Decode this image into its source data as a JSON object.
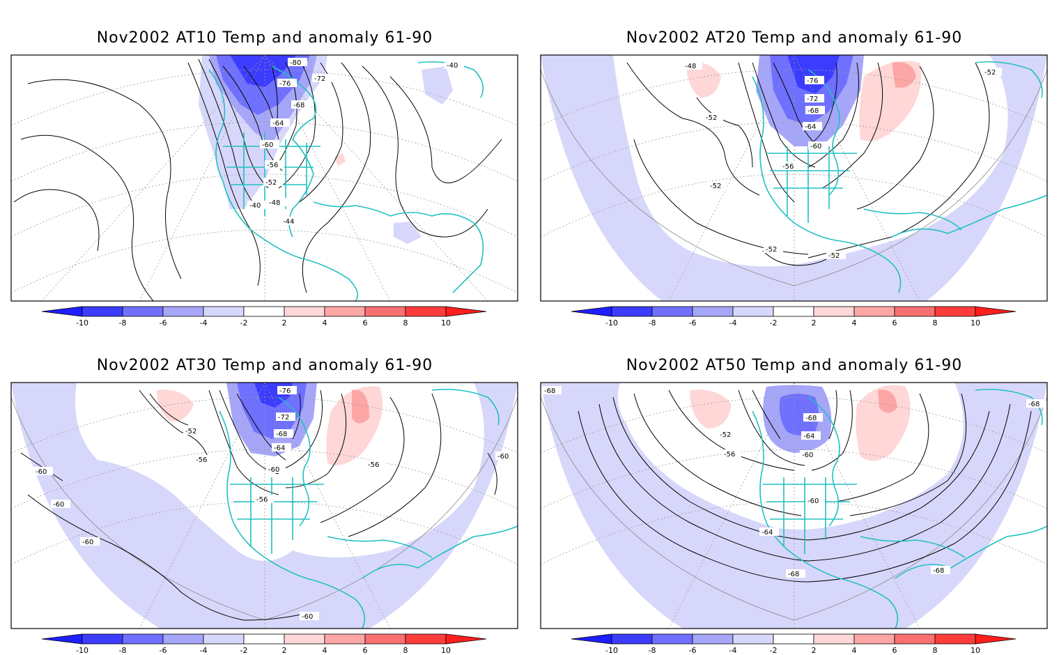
{
  "panels": [
    {
      "title": "Nov2002 AT10 Temp and anomaly 61-90",
      "contour_labels": [
        "-80",
        "-76",
        "-72",
        "-68",
        "-64",
        "-60",
        "-56",
        "-52",
        "-48",
        "-44",
        "-40",
        "-40"
      ]
    },
    {
      "title": "Nov2002 AT20 Temp and anomaly 61-90",
      "contour_labels": [
        "-48",
        "-52",
        "-76",
        "-72",
        "-68",
        "-64",
        "-60",
        "-56",
        "-52",
        "-52",
        "-52",
        "-52"
      ]
    },
    {
      "title": "Nov2002 AT30 Temp and anomaly 61-90",
      "contour_labels": [
        "-76",
        "-72",
        "-68",
        "-64",
        "-60",
        "-52",
        "-56",
        "-56",
        "-56",
        "-60",
        "-60",
        "-60",
        "-60",
        "-60"
      ]
    },
    {
      "title": "Nov2002 AT50 Temp and anomaly 61-90",
      "contour_labels": [
        "-68",
        "-64",
        "-60",
        "-52",
        "-56",
        "-60",
        "-64",
        "-68",
        "-68",
        "-68",
        "-68"
      ]
    }
  ],
  "colorbar": {
    "ticks": [
      "-10",
      "-8",
      "-6",
      "-4",
      "-2",
      "2",
      "4",
      "6",
      "8",
      "10"
    ],
    "colors": [
      "#1e1eff",
      "#3c3cff",
      "#7070ff",
      "#a6a6f8",
      "#d7d7fb",
      "#ffffff",
      "#ffd7d7",
      "#fca6a6",
      "#f87070",
      "#ff3c3c",
      "#ff1e1e"
    ]
  },
  "colors": {
    "coast": "#20c0c0",
    "contour": "#000000",
    "blue_light": "#d7d7fb",
    "blue_mid": "#a6a6f8",
    "blue_dark": "#7070ff",
    "blue_deep": "#3c3cff",
    "red_light": "#ffd7d7",
    "red_mid": "#fca6a6"
  }
}
